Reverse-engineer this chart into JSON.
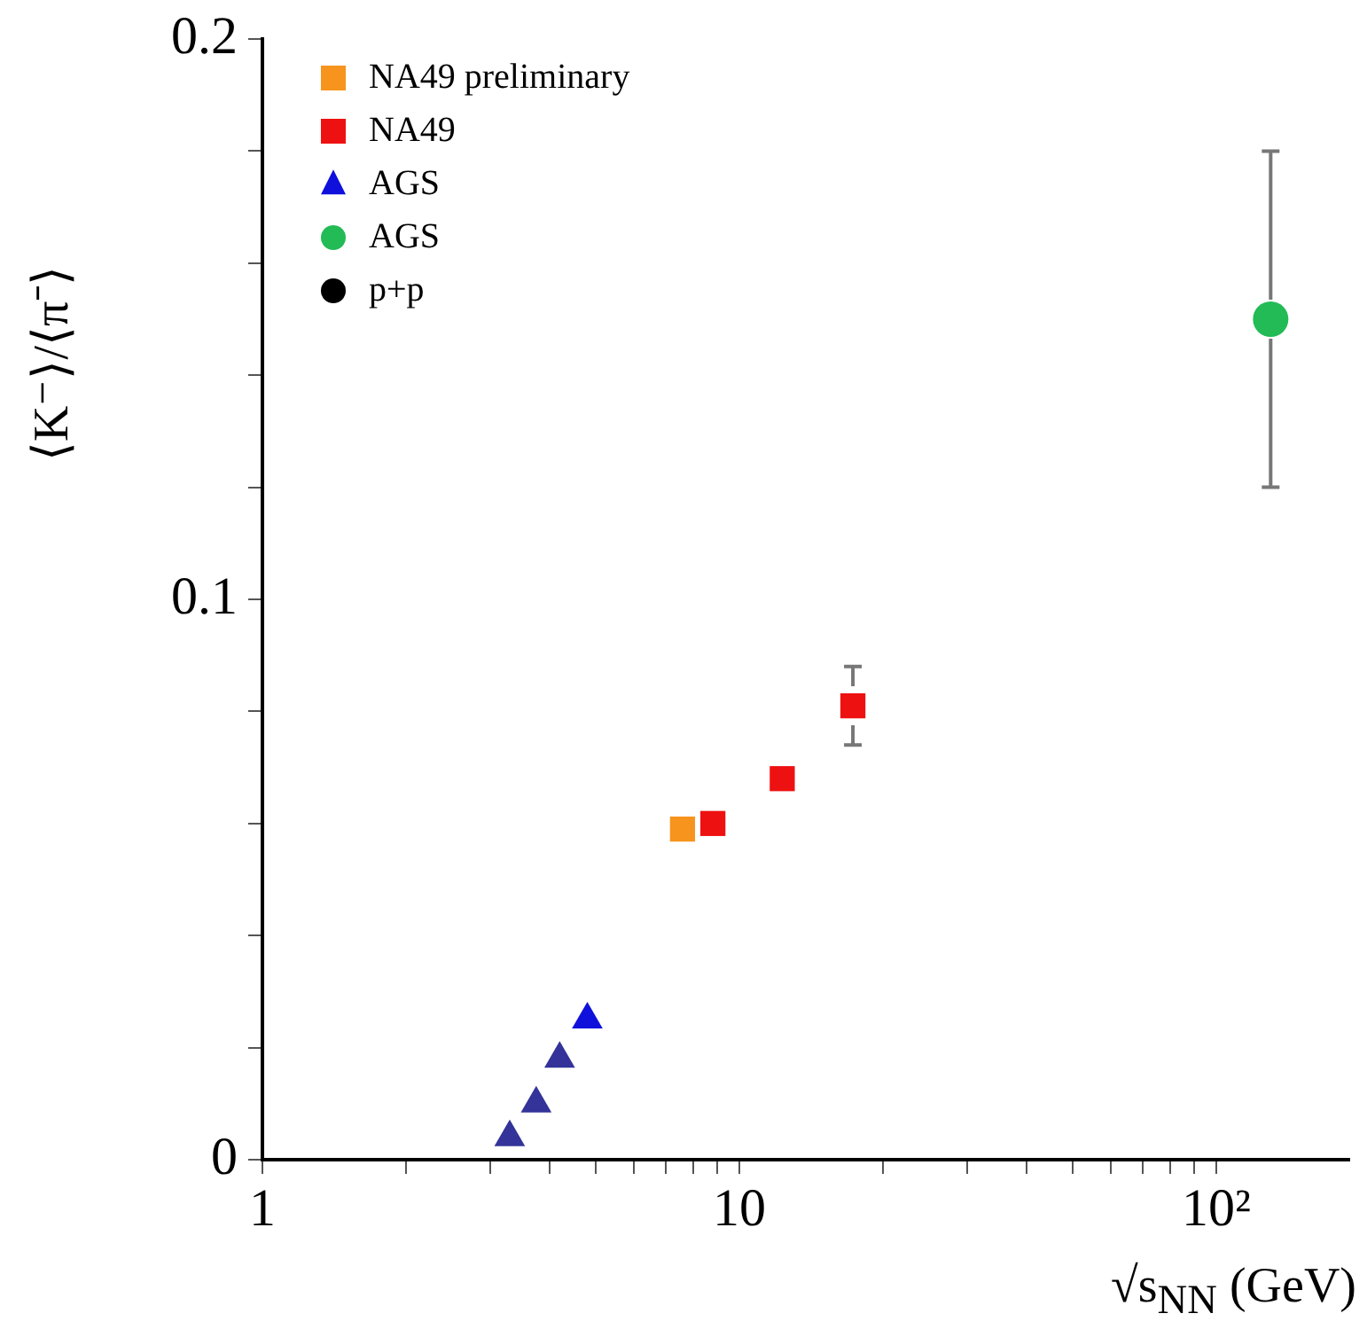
{
  "chart_data": {
    "type": "scatter",
    "xlabel": "√s$_{NN}$ (GeV)",
    "ylabel": "⟨K⁻⟩/⟨π⁻⟩",
    "log": "x",
    "xlim": [
      1,
      190
    ],
    "ylim": [
      0,
      0.2
    ],
    "xticks": [
      1,
      {
        "value": 2,
        "label": null
      },
      {
        "value": 3,
        "label": null
      },
      {
        "value": 4,
        "label": null
      },
      {
        "value": 5,
        "label": null
      },
      {
        "value": 6,
        "label": null
      },
      {
        "value": 7,
        "label": null
      },
      {
        "value": 8,
        "label": null
      },
      {
        "value": 9,
        "label": null
      },
      10,
      {
        "value": 20,
        "label": null
      },
      {
        "value": 30,
        "label": null
      },
      {
        "value": 40,
        "label": null
      },
      {
        "value": 50,
        "label": null
      },
      {
        "value": 60,
        "label": null
      },
      {
        "value": 70,
        "label": null
      },
      {
        "value": 80,
        "label": null
      },
      {
        "value": 90,
        "label": null
      },
      {
        "value": 100,
        "label": "10²"
      }
    ],
    "yticks": [
      0,
      {
        "value": 0.02,
        "label": null
      },
      {
        "value": 0.04,
        "label": null
      },
      {
        "value": 0.06,
        "label": null
      },
      {
        "value": 0.08,
        "label": null
      },
      0.1,
      {
        "value": 0.12,
        "label": null
      },
      {
        "value": 0.14,
        "label": null
      },
      {
        "value": 0.16,
        "label": null
      },
      {
        "value": 0.18,
        "label": null
      },
      0.2
    ],
    "legend": "top left",
    "grid": false,
    "series": [
      {
        "name": "NA49 preliminary",
        "color": "#f7941d",
        "marker": "square",
        "x": [
          7.6
        ],
        "values": [
          0.059
        ]
      },
      {
        "name": "NA49",
        "color": "#ee1111",
        "marker": "square",
        "x": [
          8.8,
          12.3,
          17.3
        ],
        "values": [
          0.06,
          0.068,
          0.081
        ],
        "errors": [
          null,
          null,
          0.007
        ]
      },
      {
        "name": "AGS",
        "color": "#1010dd",
        "marker": "triangle",
        "x": [
          4.8
        ],
        "values": [
          0.025
        ]
      },
      {
        "color": "#333399",
        "marker": "triangle",
        "x": [
          3.3,
          3.75,
          4.2
        ],
        "values": [
          0.004,
          0.01,
          0.018
        ]
      },
      {
        "name": "AGS",
        "color": "#22bb55",
        "marker": "circle",
        "x": [
          130
        ],
        "values": [
          0.15
        ],
        "errors": [
          0.03
        ]
      },
      {
        "name": "p+p",
        "color": "#000000",
        "marker": "circle"
      }
    ]
  }
}
